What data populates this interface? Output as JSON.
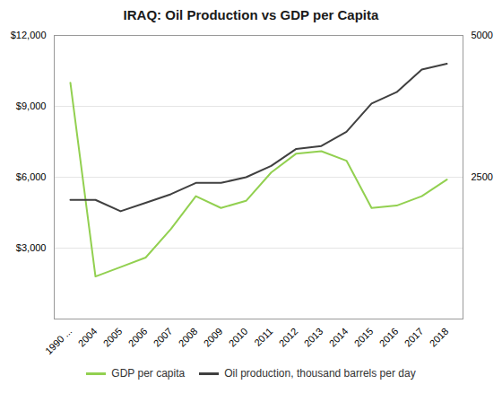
{
  "chart_data": {
    "type": "line",
    "title": "IRAQ: Oil Production vs GDP per Capita",
    "categories": [
      "1990 ...",
      "2004",
      "2005",
      "2006",
      "2007",
      "2008",
      "2009",
      "2010",
      "2011",
      "2012",
      "2013",
      "2014",
      "2015",
      "2016",
      "2017",
      "2018"
    ],
    "series": [
      {
        "name": "GDP per capita",
        "color": "#92d050",
        "axis": "y",
        "values": [
          10000,
          1800,
          2200,
          2600,
          3800,
          5200,
          4700,
          5000,
          6200,
          7000,
          7100,
          6700,
          4700,
          4800,
          5200,
          5900
        ]
      },
      {
        "name": "Oil production, thousand barrels per day",
        "color": "#404040",
        "axis": "y2",
        "values": [
          2100,
          2100,
          1900,
          2050,
          2200,
          2400,
          2400,
          2500,
          2700,
          3000,
          3050,
          3300,
          3800,
          4000,
          4400,
          4500
        ]
      }
    ],
    "ylim": [
      0,
      12000
    ],
    "yticks": [
      {
        "value": 3000,
        "label": "$3,000"
      },
      {
        "value": 6000,
        "label": "$6,000"
      },
      {
        "value": 9000,
        "label": "$9,000"
      },
      {
        "value": 12000,
        "label": "$12,000"
      }
    ],
    "y2lim": [
      0,
      5000
    ],
    "y2ticks": [
      2500,
      5000
    ],
    "grid": true,
    "legend": "bottom"
  }
}
